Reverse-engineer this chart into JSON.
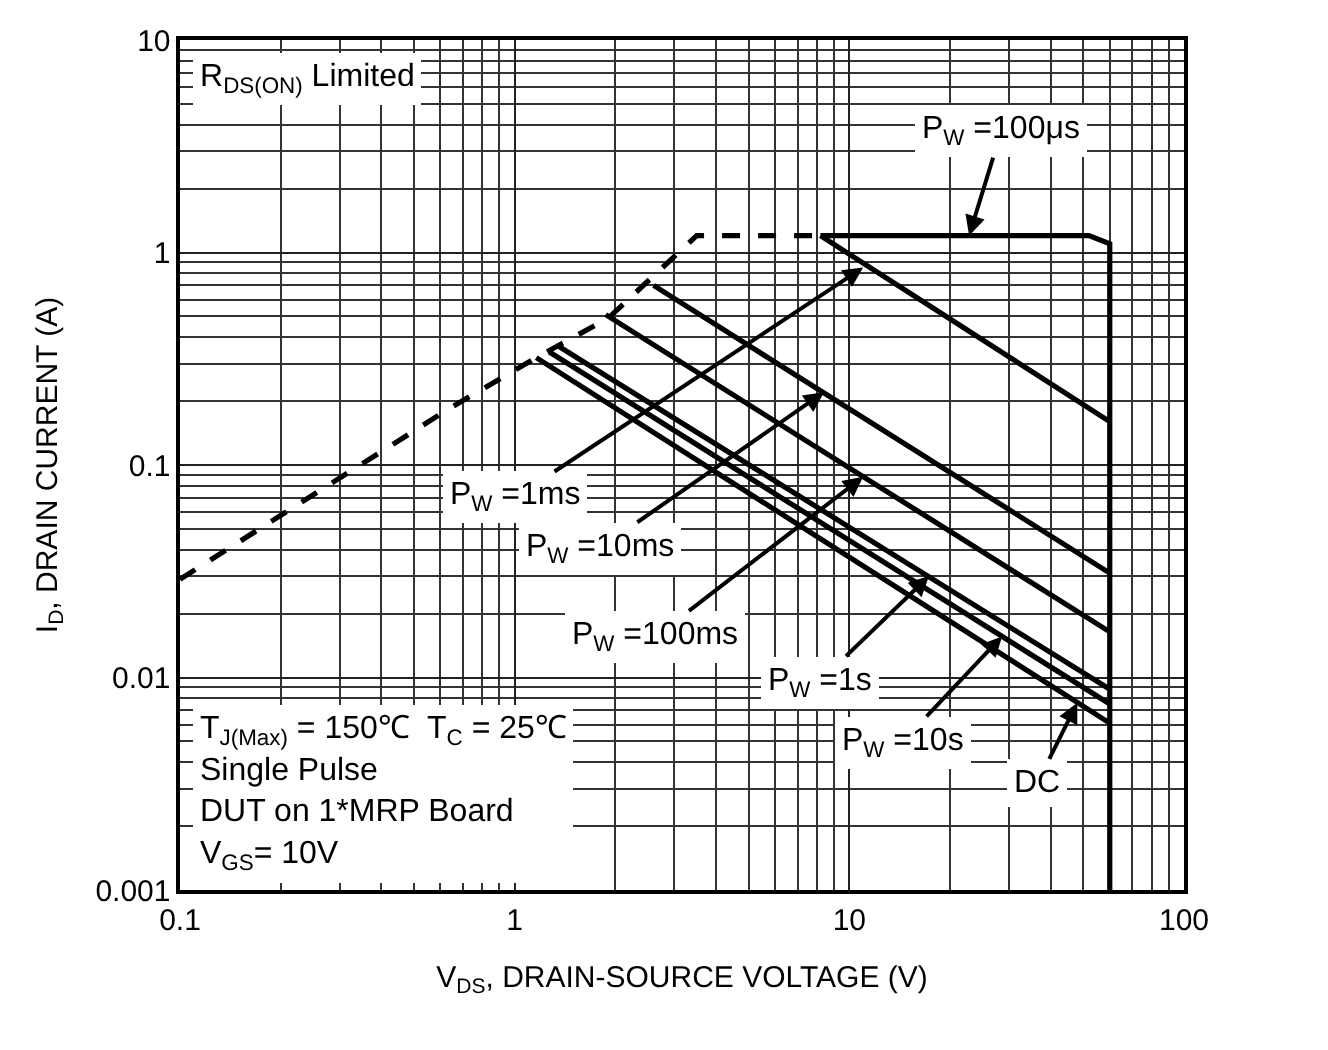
{
  "chart_data": {
    "type": "line",
    "xlabel": "V$_{DS}$, DRAIN-SOURCE VOLTAGE (V)",
    "ylabel": "I$_{D}$, DRAIN CURRENT (A)",
    "log": "xy",
    "grid": true,
    "marker": "none",
    "xlim": [
      0.1,
      100
    ],
    "xticks": [
      0.1,
      1,
      10,
      100
    ],
    "ylim": [
      0.001,
      10
    ],
    "yticks": [
      0.001,
      0.01,
      0.1,
      1,
      10
    ],
    "series": [
      {
        "color": "#000000",
        "line_style": "dashed",
        "x": [
          0.1,
          0.64,
          1.16,
          1.9,
          3.5,
          8.2
        ],
        "values": [
          0.029,
          0.185,
          0.32,
          0.49,
          1.2,
          1.2
        ]
      },
      {
        "color": "#000000",
        "line_style": "solid",
        "x": [
          8.2,
          52,
          60,
          60
        ],
        "values": [
          1.2,
          1.2,
          1.1,
          0.001
        ]
      },
      {
        "color": "#000000",
        "line_style": "solid",
        "x": [
          8.2,
          60
        ],
        "values": [
          1.2,
          0.16
        ]
      },
      {
        "color": "#000000",
        "line_style": "solid",
        "x": [
          2.6,
          60
        ],
        "values": [
          0.7,
          0.031
        ]
      },
      {
        "color": "#000000",
        "line_style": "solid",
        "x": [
          1.87,
          60
        ],
        "values": [
          0.51,
          0.0164
        ]
      },
      {
        "color": "#000000",
        "line_style": "solid",
        "x": [
          1.36,
          60
        ],
        "values": [
          0.36,
          0.0088
        ]
      },
      {
        "color": "#000000",
        "line_style": "solid",
        "x": [
          1.27,
          60
        ],
        "values": [
          0.34,
          0.0075
        ]
      },
      {
        "color": "#000000",
        "line_style": "solid",
        "x": [
          1.16,
          60
        ],
        "values": [
          0.32,
          0.0061
        ]
      }
    ],
    "annotations": [
      "R$_{DS(ON)}$ Limited",
      "T$_{J(Max)}$ = 150℃  T$_{C}$ = 25℃\nSingle Pulse\nDUT on 1*MRP Board\nV$_{GS}$= 10V",
      {
        "text": "P$_{W}$ =100μs",
        "x": 22.8,
        "y": 1.2
      },
      {
        "text": "P$_{W}$ =1ms",
        "x": 11.0,
        "y": 0.85
      },
      {
        "text": "P$_{W}$ =10ms",
        "x": 8.4,
        "y": 0.22
      },
      {
        "text": "P$_{W}$ =100ms",
        "x": 11.0,
        "y": 0.088
      },
      {
        "text": "P$_{W}$ =1s",
        "x": 17.3,
        "y": 0.03
      },
      {
        "text": "P$_{W}$ =10s",
        "x": 28.6,
        "y": 0.0156
      },
      {
        "text": "DC",
        "x": 48,
        "y": 0.0076
      }
    ]
  }
}
